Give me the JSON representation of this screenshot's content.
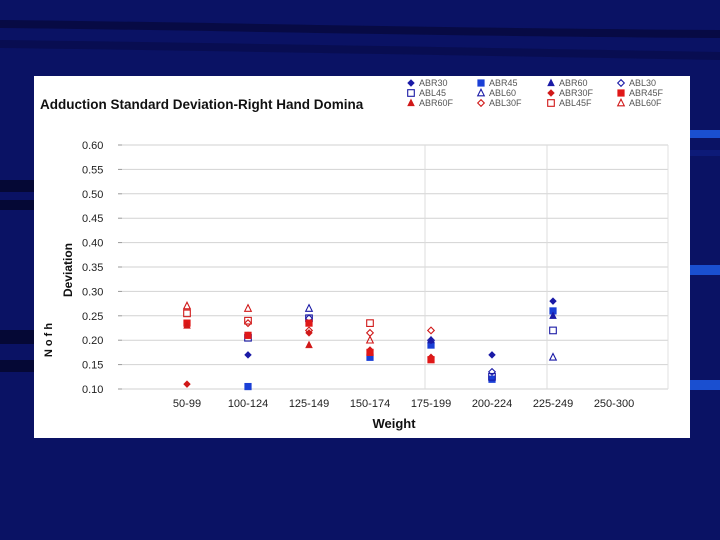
{
  "slide": {
    "background_color": "#0a1264"
  },
  "chart_data": {
    "type": "scatter",
    "title": "Adduction Standard Deviation-Right Hand Domina",
    "ylabel": "Deviation",
    "ylabel_fragment": "N o f h",
    "xlabel": "Weight",
    "categories": [
      "50-99",
      "100-124",
      "125-149",
      "150-174",
      "175-199",
      "200-224",
      "225-249",
      "250-300"
    ],
    "yticks": [
      "0.60",
      "0.55",
      "0.50",
      "0.45",
      "0.40",
      "0.35",
      "0.30",
      "0.25",
      "0.20",
      "0.15",
      "0.10"
    ],
    "ylim": [
      0.1,
      0.6
    ],
    "grid": true,
    "legend_position": "top-right",
    "series": [
      {
        "name": "ABR30",
        "marker": "diamond",
        "color": "#1a1aa6",
        "values": [
          null,
          0.17,
          null,
          null,
          null,
          0.17,
          0.28,
          null
        ]
      },
      {
        "name": "ABR45",
        "marker": "square",
        "color": "#1a3fd6",
        "values": [
          null,
          0.105,
          null,
          0.165,
          0.19,
          0.12,
          0.26,
          null
        ]
      },
      {
        "name": "ABR60",
        "marker": "triangle",
        "color": "#1a1aa6",
        "values": [
          null,
          null,
          null,
          null,
          0.2,
          null,
          0.25,
          null
        ]
      },
      {
        "name": "ABL30",
        "marker": "diamond-open",
        "color": "#1a1aa6",
        "values": [
          null,
          null,
          0.245,
          null,
          0.2,
          0.135,
          null,
          null
        ]
      },
      {
        "name": "ABL45",
        "marker": "square-open",
        "color": "#1a1aa6",
        "values": [
          null,
          0.205,
          0.245,
          null,
          null,
          0.125,
          0.22,
          null
        ]
      },
      {
        "name": "ABL60",
        "marker": "triangle-open",
        "color": "#1a1aa6",
        "values": [
          null,
          null,
          0.265,
          null,
          null,
          null,
          0.165,
          null
        ]
      },
      {
        "name": "ABR30F",
        "marker": "diamond",
        "color": "#d01818",
        "values": [
          0.11,
          0.21,
          0.215,
          0.18,
          0.165,
          null,
          null,
          null
        ]
      },
      {
        "name": "ABR45F",
        "marker": "square",
        "color": "#e01818",
        "values": [
          0.235,
          0.21,
          0.235,
          0.175,
          0.16,
          null,
          null,
          null
        ]
      },
      {
        "name": "ABR60F",
        "marker": "triangle",
        "color": "#d01818",
        "values": [
          0.23,
          null,
          0.19,
          null,
          null,
          null,
          null,
          null
        ]
      },
      {
        "name": "ABL30F",
        "marker": "diamond-open",
        "color": "#d01818",
        "values": [
          null,
          0.235,
          0.22,
          0.215,
          0.22,
          null,
          null,
          null
        ]
      },
      {
        "name": "ABL45F",
        "marker": "square-open",
        "color": "#d01818",
        "values": [
          0.255,
          0.24,
          null,
          0.235,
          null,
          null,
          null,
          null
        ]
      },
      {
        "name": "ABL60F",
        "marker": "triangle-open",
        "color": "#d01818",
        "values": [
          0.27,
          0.265,
          null,
          0.2,
          null,
          null,
          null,
          null
        ]
      }
    ]
  }
}
